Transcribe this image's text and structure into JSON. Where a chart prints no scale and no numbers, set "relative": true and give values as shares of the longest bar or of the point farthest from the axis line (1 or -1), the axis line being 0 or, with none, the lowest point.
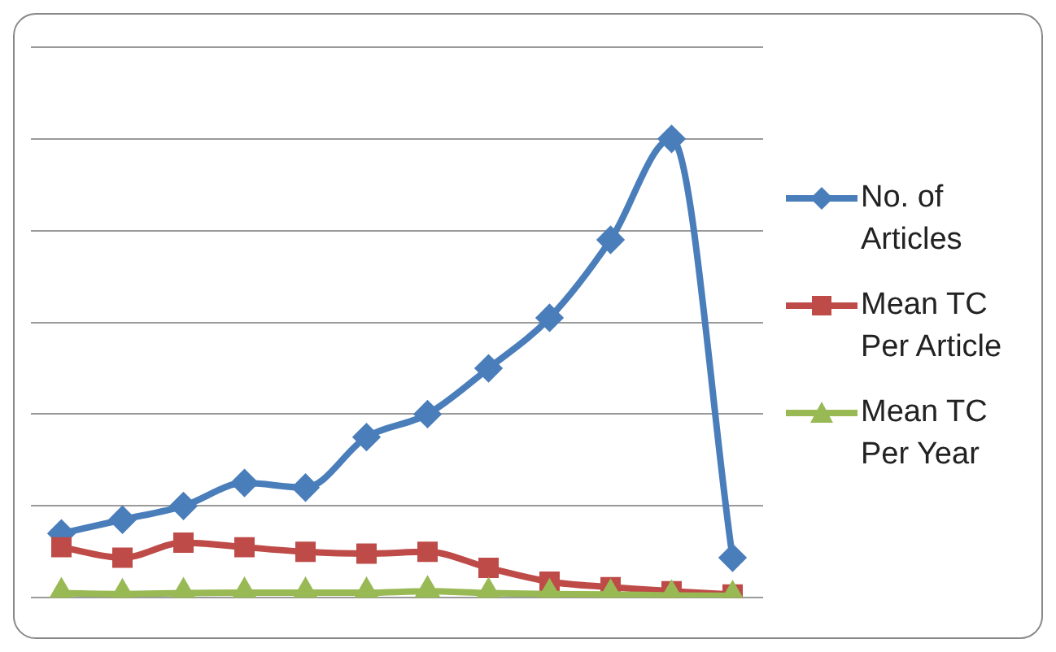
{
  "chart_data": {
    "type": "line",
    "relative": true,
    "categories": [
      null,
      null,
      null,
      null,
      null,
      null,
      null,
      null,
      null,
      null,
      null,
      null
    ],
    "series": [
      {
        "name": "No. of Articles",
        "color": "#4a7ebb",
        "marker": "diamond",
        "values": [
          0.14,
          0.17,
          0.2,
          0.25,
          0.24,
          0.35,
          0.4,
          0.5,
          0.61,
          0.78,
          1,
          0.087
        ]
      },
      {
        "name": "Mean TC Per Article",
        "color": "#be4b48",
        "marker": "square",
        "values": [
          0.11,
          0.087,
          0.12,
          0.11,
          0.1,
          0.096,
          0.1,
          0.065,
          0.035,
          0.023,
          0.014,
          0.007
        ]
      },
      {
        "name": "Mean TC Per Year",
        "color": "#98b954",
        "marker": "triangle",
        "values": [
          0.01,
          0.008,
          0.01,
          0.011,
          0.011,
          0.011,
          0.014,
          0.01,
          0.008,
          0.007,
          0.005,
          0.004
        ]
      }
    ],
    "grid": "y",
    "legend": "right"
  }
}
